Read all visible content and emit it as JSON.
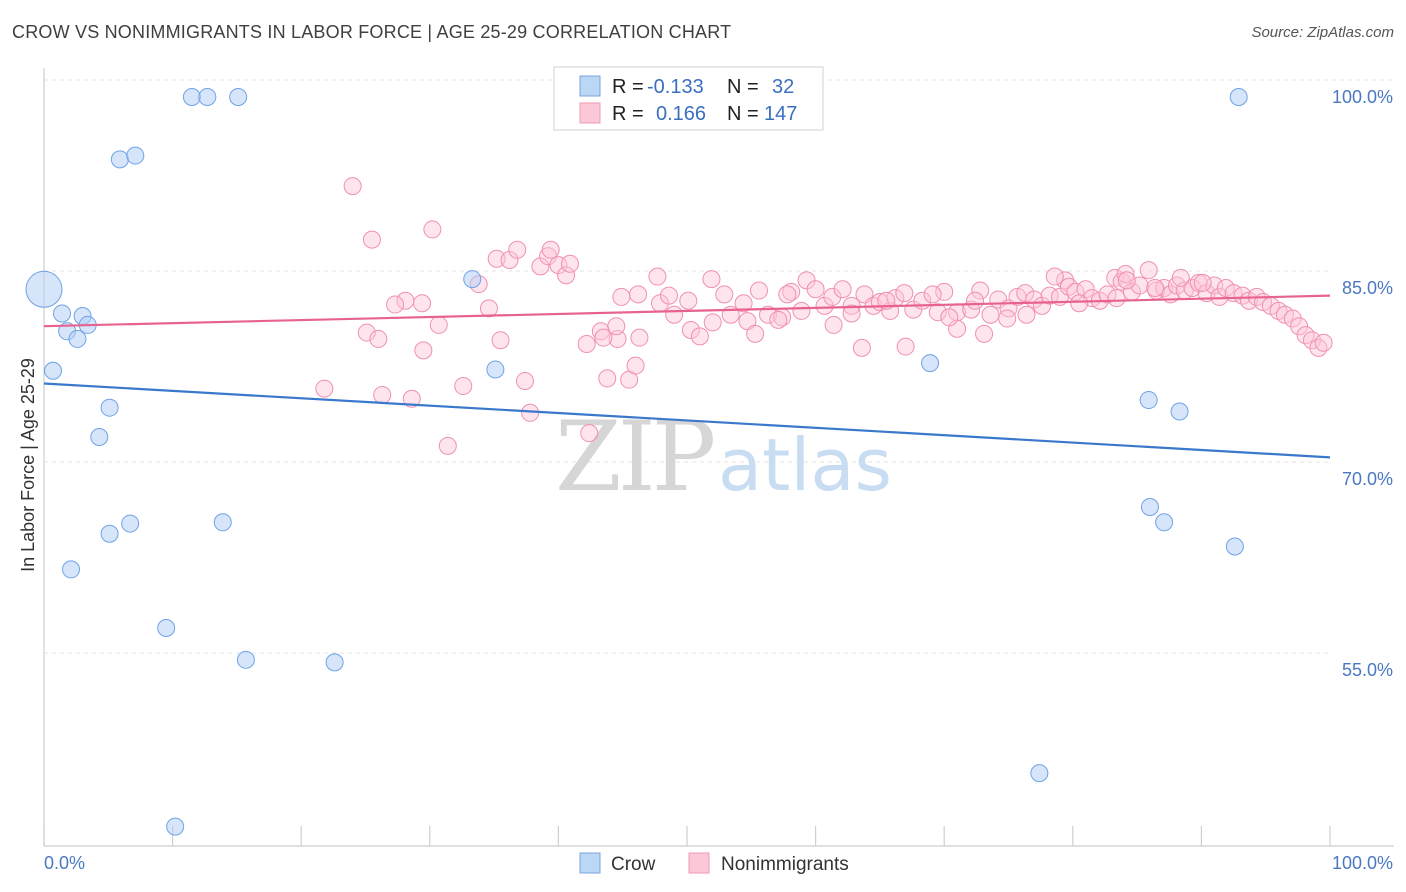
{
  "header": {
    "title": "CROW VS NONIMMIGRANTS IN LABOR FORCE | AGE 25-29 CORRELATION CHART",
    "source": "Source: ZipAtlas.com"
  },
  "chart_data": {
    "type": "scatter",
    "title": "CROW VS NONIMMIGRANTS IN LABOR FORCE | AGE 25-29 CORRELATION CHART",
    "xlabel": "",
    "ylabel": "In Labor Force | Age 25-29",
    "xlim": [
      0,
      100
    ],
    "ylim": [
      40,
      102
    ],
    "x_tick_labels": [
      "0.0%",
      "100.0%"
    ],
    "y_ticks": [
      100,
      85,
      70,
      55
    ],
    "y_tick_labels": [
      "100.0%",
      "85.0%",
      "70.0%",
      "55.0%"
    ],
    "grid": true,
    "watermark": "ZIPatlas",
    "legend_position": "top-center",
    "colors": {
      "crow": "#6fa3e6",
      "crow_line": "#3a78cc",
      "nonimmigrants": "#f090b0",
      "nonimmigrants_line": "#e8628f"
    },
    "legend": [
      {
        "label": "R =",
        "r": "-0.133",
        "n_label": "N =",
        "n": "32"
      },
      {
        "label": "R =",
        "r": "0.166",
        "n_label": "N =",
        "n": "147"
      }
    ],
    "series": [
      {
        "name": "Crow",
        "trend": {
          "x": [
            0,
            100
          ],
          "y": [
            77.5,
            71.7
          ]
        },
        "points": [
          [
            0,
            84.9,
            2
          ],
          [
            1.4,
            83.0,
            1
          ],
          [
            1.8,
            81.6,
            1
          ],
          [
            2.6,
            81.0,
            1
          ],
          [
            3.0,
            82.8,
            1
          ],
          [
            3.4,
            82.1,
            1
          ],
          [
            0.7,
            78.5,
            1
          ],
          [
            5.1,
            75.6,
            1
          ],
          [
            4.3,
            73.3,
            1
          ],
          [
            5.1,
            65.7,
            1
          ],
          [
            6.7,
            66.5,
            1
          ],
          [
            2.1,
            62.9,
            1
          ],
          [
            5.9,
            95.1,
            1
          ],
          [
            7.1,
            95.4,
            1
          ],
          [
            11.5,
            100.0,
            1
          ],
          [
            12.7,
            100.0,
            1
          ],
          [
            15.1,
            100.0,
            1
          ],
          [
            13.9,
            66.6,
            1
          ],
          [
            9.5,
            58.3,
            1
          ],
          [
            15.7,
            55.8,
            1
          ],
          [
            22.6,
            55.6,
            1
          ],
          [
            10.2,
            42.7,
            1
          ],
          [
            33.3,
            85.7,
            1
          ],
          [
            35.1,
            78.6,
            1
          ],
          [
            68.9,
            79.1,
            1
          ],
          [
            92.9,
            100.0,
            1
          ],
          [
            85.9,
            76.2,
            1
          ],
          [
            88.3,
            75.3,
            1
          ],
          [
            86.0,
            67.8,
            1
          ],
          [
            87.1,
            66.6,
            1
          ],
          [
            92.6,
            64.7,
            1
          ],
          [
            77.4,
            46.9,
            1
          ]
        ]
      },
      {
        "name": "Nonimmigrants",
        "trend": {
          "x": [
            0,
            100
          ],
          "y": [
            82.0,
            84.4
          ]
        },
        "points": [
          [
            24.0,
            93.0,
            1
          ],
          [
            25.5,
            88.8,
            1
          ],
          [
            30.2,
            89.6,
            1
          ],
          [
            35.2,
            87.3,
            1
          ],
          [
            36.2,
            87.2,
            1
          ],
          [
            36.8,
            88.0,
            1
          ],
          [
            38.6,
            86.7,
            1
          ],
          [
            39.2,
            87.5,
            1
          ],
          [
            39.4,
            88.0,
            1
          ],
          [
            40.0,
            86.8,
            1
          ],
          [
            40.6,
            86.0,
            1
          ],
          [
            40.9,
            86.9,
            1
          ],
          [
            28.1,
            84.0,
            1
          ],
          [
            27.3,
            83.7,
            1
          ],
          [
            29.4,
            83.8,
            1
          ],
          [
            33.8,
            85.3,
            1
          ],
          [
            35.5,
            80.9,
            1
          ],
          [
            34.6,
            83.4,
            1
          ],
          [
            25.1,
            81.5,
            1
          ],
          [
            26.0,
            81.0,
            1
          ],
          [
            29.5,
            80.1,
            1
          ],
          [
            30.7,
            82.1,
            1
          ],
          [
            32.6,
            77.3,
            1
          ],
          [
            21.8,
            77.1,
            1
          ],
          [
            26.3,
            76.6,
            1
          ],
          [
            28.6,
            76.3,
            1
          ],
          [
            37.4,
            77.7,
            1
          ],
          [
            37.8,
            75.2,
            1
          ],
          [
            31.4,
            72.6,
            1
          ],
          [
            42.4,
            73.6,
            1
          ],
          [
            43.8,
            77.9,
            1
          ],
          [
            45.5,
            77.8,
            1
          ],
          [
            46.0,
            78.9,
            1
          ],
          [
            43.3,
            81.6,
            1
          ],
          [
            44.6,
            81.0,
            1
          ],
          [
            43.5,
            81.1,
            1
          ],
          [
            42.2,
            80.6,
            1
          ],
          [
            44.9,
            84.3,
            1
          ],
          [
            46.2,
            84.5,
            1
          ],
          [
            47.9,
            83.8,
            1
          ],
          [
            49.0,
            82.9,
            1
          ],
          [
            50.3,
            81.7,
            1
          ],
          [
            51.0,
            81.2,
            1
          ],
          [
            52.0,
            82.3,
            1
          ],
          [
            53.4,
            82.9,
            1
          ],
          [
            54.7,
            82.4,
            1
          ],
          [
            55.3,
            81.4,
            1
          ],
          [
            56.3,
            82.9,
            1
          ],
          [
            57.4,
            82.7,
            1
          ],
          [
            58.1,
            84.7,
            1
          ],
          [
            47.7,
            85.9,
            1
          ],
          [
            51.9,
            85.7,
            1
          ],
          [
            52.9,
            84.5,
            1
          ],
          [
            54.4,
            83.8,
            1
          ],
          [
            57.8,
            84.5,
            1
          ],
          [
            59.3,
            85.6,
            1
          ],
          [
            60.0,
            84.9,
            1
          ],
          [
            60.7,
            83.6,
            1
          ],
          [
            61.3,
            84.3,
            1
          ],
          [
            62.1,
            84.9,
            1
          ],
          [
            62.8,
            83.6,
            1
          ],
          [
            63.8,
            84.5,
            1
          ],
          [
            64.5,
            83.6,
            1
          ],
          [
            65.0,
            83.9,
            1
          ],
          [
            65.8,
            83.2,
            1
          ],
          [
            66.2,
            84.2,
            1
          ],
          [
            66.9,
            84.6,
            1
          ],
          [
            67.6,
            83.3,
            1
          ],
          [
            68.3,
            84.0,
            1
          ],
          [
            69.5,
            83.1,
            1
          ],
          [
            70.0,
            84.7,
            1
          ],
          [
            71.0,
            83.1,
            1
          ],
          [
            72.1,
            83.3,
            1
          ],
          [
            72.8,
            84.8,
            1
          ],
          [
            73.6,
            82.9,
            1
          ],
          [
            74.2,
            84.1,
            1
          ],
          [
            75.0,
            83.4,
            1
          ],
          [
            75.7,
            84.3,
            1
          ],
          [
            76.3,
            84.6,
            1
          ],
          [
            77.0,
            84.1,
            1
          ],
          [
            77.6,
            83.6,
            1
          ],
          [
            78.2,
            84.4,
            1
          ],
          [
            79.0,
            84.3,
            1
          ],
          [
            79.4,
            85.6,
            1
          ],
          [
            79.7,
            85.1,
            1
          ],
          [
            80.2,
            84.7,
            1
          ],
          [
            81.0,
            84.9,
            1
          ],
          [
            81.5,
            84.2,
            1
          ],
          [
            82.1,
            84.0,
            1
          ],
          [
            82.7,
            84.5,
            1
          ],
          [
            83.3,
            85.8,
            1
          ],
          [
            83.8,
            85.5,
            1
          ],
          [
            84.1,
            86.1,
            1
          ],
          [
            84.6,
            84.7,
            1
          ],
          [
            85.2,
            85.2,
            1
          ],
          [
            85.9,
            86.4,
            1
          ],
          [
            86.5,
            84.8,
            1
          ],
          [
            87.1,
            85.0,
            1
          ],
          [
            87.6,
            84.5,
            1
          ],
          [
            88.1,
            85.2,
            1
          ],
          [
            88.7,
            84.8,
            1
          ],
          [
            89.3,
            85.0,
            1
          ],
          [
            89.8,
            85.4,
            1
          ],
          [
            90.4,
            84.6,
            1
          ],
          [
            91.0,
            85.2,
            1
          ],
          [
            91.4,
            84.3,
            1
          ],
          [
            91.9,
            85.0,
            1
          ],
          [
            92.5,
            84.6,
            1
          ],
          [
            93.2,
            84.4,
            1
          ],
          [
            93.7,
            84.0,
            1
          ],
          [
            94.3,
            84.3,
            1
          ],
          [
            94.8,
            83.9,
            1
          ],
          [
            95.4,
            83.6,
            1
          ],
          [
            96.0,
            83.2,
            1
          ],
          [
            96.5,
            82.9,
            1
          ],
          [
            97.1,
            82.6,
            1
          ],
          [
            97.6,
            82.0,
            1
          ],
          [
            98.1,
            81.3,
            1
          ],
          [
            98.6,
            80.9,
            1
          ],
          [
            99.1,
            80.3,
            1
          ],
          [
            99.5,
            80.7,
            1
          ],
          [
            78.6,
            85.9,
            1
          ],
          [
            84.2,
            85.6,
            1
          ],
          [
            86.4,
            85.0,
            1
          ],
          [
            88.4,
            85.8,
            1
          ],
          [
            90.1,
            85.4,
            1
          ],
          [
            69.1,
            84.5,
            1
          ],
          [
            67.0,
            80.4,
            1
          ],
          [
            63.6,
            80.3,
            1
          ],
          [
            71.0,
            81.8,
            1
          ],
          [
            73.1,
            81.4,
            1
          ],
          [
            76.4,
            82.9,
            1
          ],
          [
            58.9,
            83.2,
            1
          ],
          [
            55.6,
            84.8,
            1
          ],
          [
            61.4,
            82.1,
            1
          ],
          [
            57.1,
            82.5,
            1
          ],
          [
            50.1,
            84.0,
            1
          ],
          [
            48.6,
            84.4,
            1
          ],
          [
            46.3,
            81.1,
            1
          ],
          [
            44.5,
            82.0,
            1
          ],
          [
            62.8,
            83.0,
            1
          ],
          [
            65.5,
            84.0,
            1
          ],
          [
            70.4,
            82.7,
            1
          ],
          [
            72.4,
            84.0,
            1
          ],
          [
            74.9,
            82.6,
            1
          ],
          [
            80.5,
            83.8,
            1
          ],
          [
            83.4,
            84.2,
            1
          ]
        ]
      }
    ]
  },
  "bottom_legend": [
    {
      "label": "Crow"
    },
    {
      "label": "Nonimmigrants"
    }
  ]
}
